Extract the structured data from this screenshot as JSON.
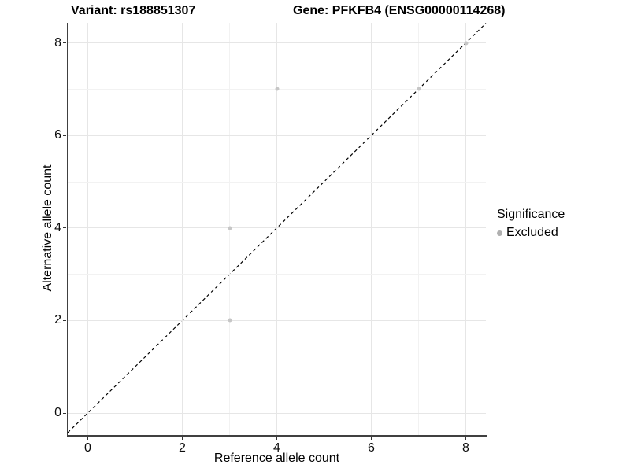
{
  "titles": {
    "variant": "Variant: rs188851307",
    "gene": "Gene: PFKFB4 (ENSG00000114268)"
  },
  "axes": {
    "x": {
      "label": "Reference allele count",
      "tick_values": [
        0,
        2,
        4,
        6,
        8
      ],
      "tick_labels": [
        "0",
        "2",
        "4",
        "6",
        "8"
      ],
      "gridline_values": [
        0,
        1,
        2,
        3,
        4,
        5,
        6,
        7,
        8
      ],
      "range": [
        -0.425,
        8.425
      ]
    },
    "y": {
      "label": "Alternative allele count",
      "tick_values": [
        0,
        2,
        4,
        6,
        8
      ],
      "tick_labels": [
        "0",
        "2",
        "4",
        "6",
        "8"
      ],
      "gridline_values": [
        0,
        1,
        2,
        3,
        4,
        5,
        6,
        7,
        8
      ],
      "range": [
        -0.425,
        8.425
      ]
    }
  },
  "legend": {
    "title": "Significance",
    "items": [
      {
        "label": "Excluded",
        "color": "#b0b0b0"
      }
    ]
  },
  "chart_data": {
    "type": "scatter",
    "title": "Variant: rs188851307 — Gene: PFKFB4 (ENSG00000114268)",
    "xlabel": "Reference allele count",
    "ylabel": "Alternative allele count",
    "xlim": [
      -0.425,
      8.425
    ],
    "ylim": [
      -0.425,
      8.425
    ],
    "grid": "on",
    "legend_position": "right",
    "series": [
      {
        "name": "Excluded",
        "color": "#c6c6c6",
        "points": [
          [
            3,
            2
          ],
          [
            3,
            4
          ],
          [
            4,
            7
          ],
          [
            7,
            7
          ],
          [
            8,
            8
          ]
        ]
      }
    ],
    "reference_line": {
      "type": "identity",
      "slope": 1,
      "intercept": 0,
      "style": "dashed",
      "color": "#000000"
    }
  },
  "colors": {
    "background": "#ffffff",
    "grid_major": "#e6e6e6",
    "grid_minor": "#f2f2f2",
    "axis_line": "#404040",
    "point": "#c6c6c6",
    "legend_point": "#b0b0b0",
    "identity_line": "#000000"
  }
}
